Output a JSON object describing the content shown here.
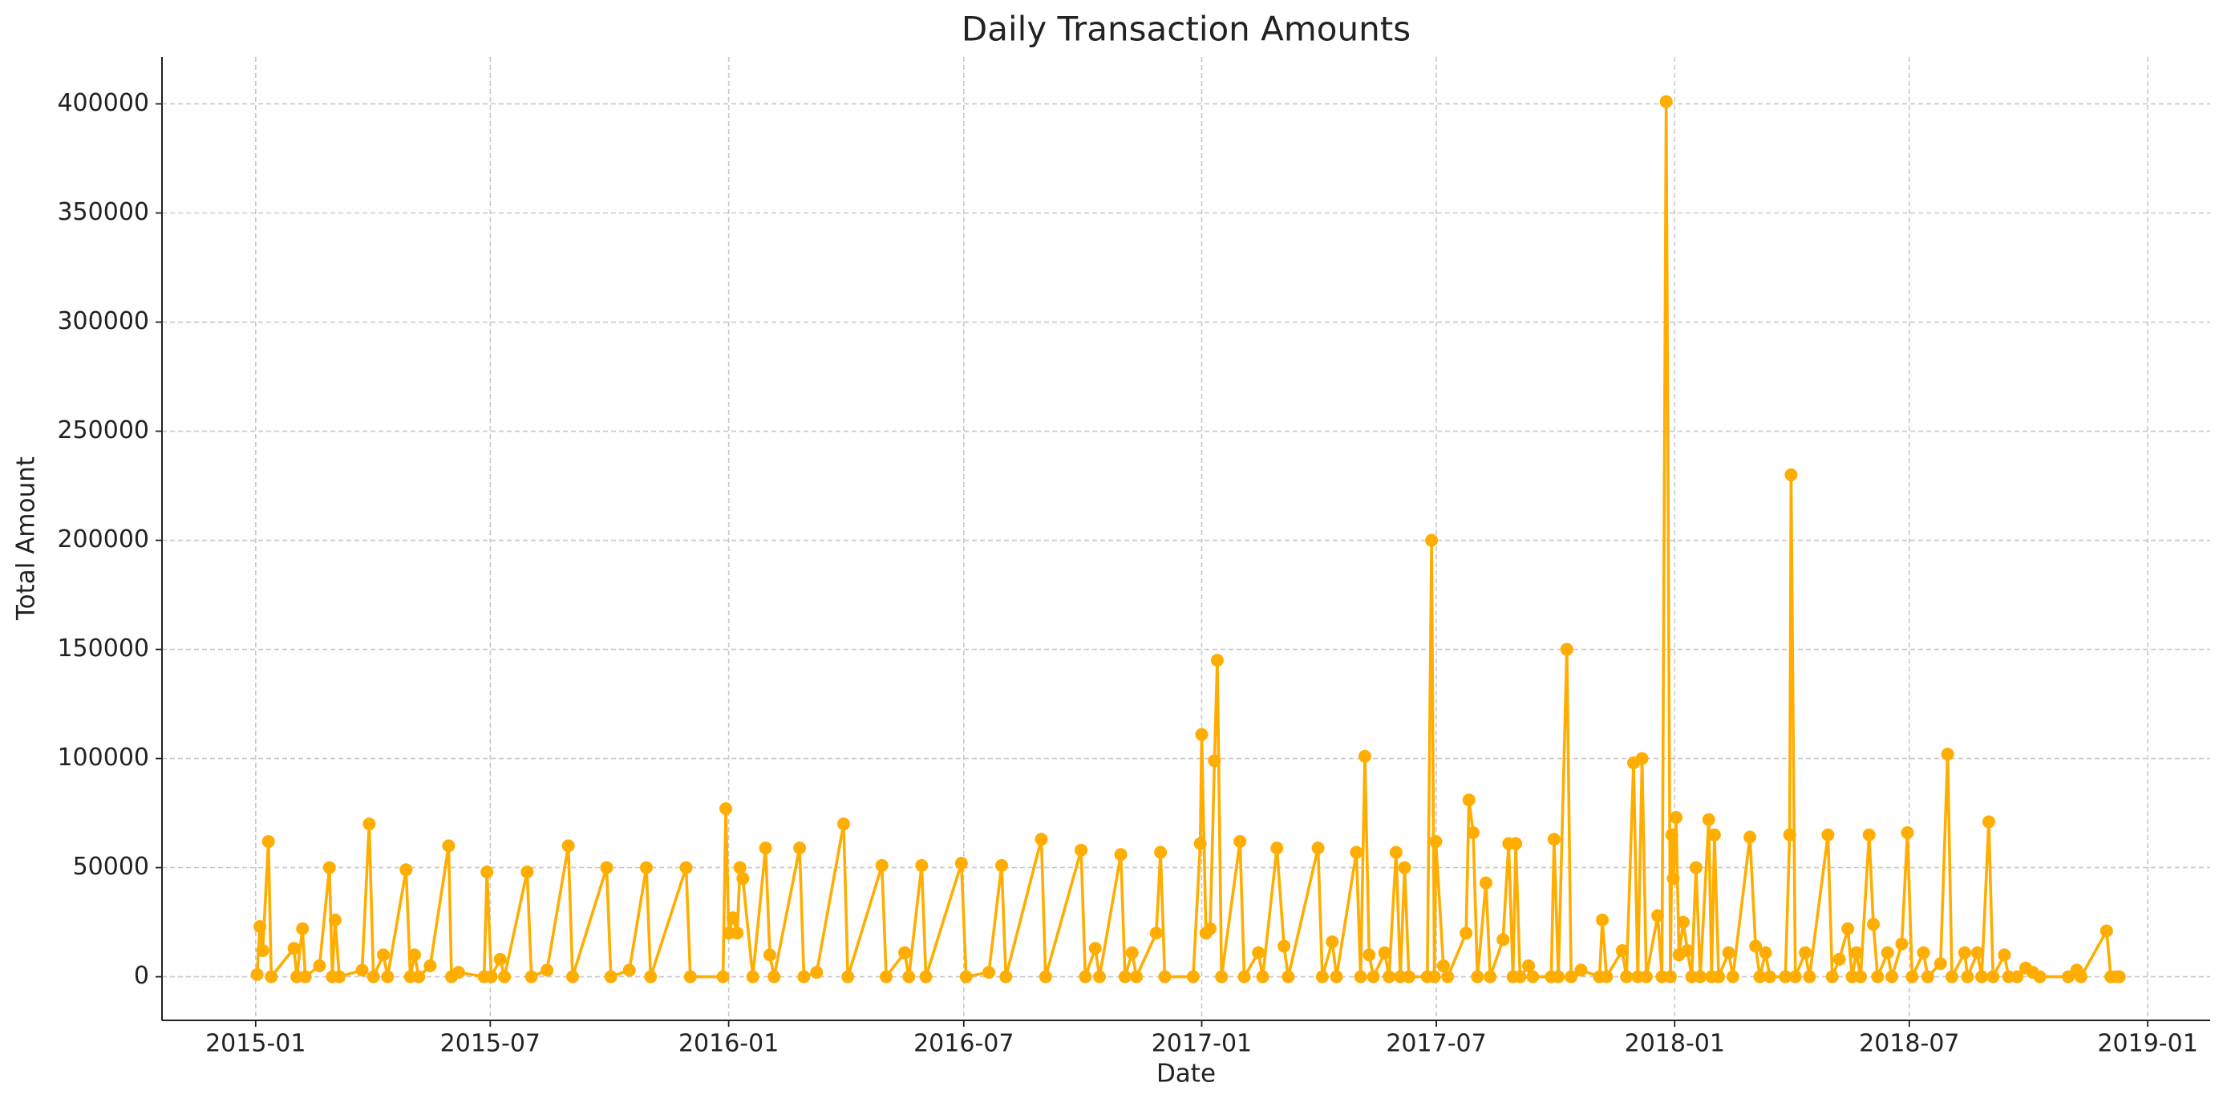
{
  "chart_data": {
    "type": "line",
    "title": "Daily Transaction Amounts",
    "xlabel": "Date",
    "ylabel": "Total Amount",
    "color": "#ffad00",
    "grid": true,
    "xlim": [
      2014.802,
      2019.132
    ],
    "ylim": [
      -20000,
      421500
    ],
    "xticks": [
      {
        "value": 2015,
        "label": "2015-01"
      },
      {
        "value": 2015.496,
        "label": "2015-07"
      },
      {
        "value": 2016,
        "label": "2016-01"
      },
      {
        "value": 2016.497,
        "label": "2016-07"
      },
      {
        "value": 2017,
        "label": "2017-01"
      },
      {
        "value": 2017.496,
        "label": "2017-07"
      },
      {
        "value": 2018,
        "label": "2018-01"
      },
      {
        "value": 2018.496,
        "label": "2018-07"
      },
      {
        "value": 2019,
        "label": "2019-01"
      }
    ],
    "yticks": [
      0,
      50000,
      100000,
      150000,
      200000,
      250000,
      300000,
      350000,
      400000
    ],
    "x": [
      2015.003,
      2015.009,
      2015.015,
      2015.027,
      2015.033,
      2015.081,
      2015.087,
      2015.099,
      2015.105,
      2015.135,
      2015.156,
      2015.162,
      2015.168,
      2015.177,
      2015.225,
      2015.24,
      2015.249,
      2015.27,
      2015.279,
      2015.318,
      2015.327,
      2015.336,
      2015.345,
      2015.369,
      2015.408,
      2015.414,
      2015.429,
      2015.483,
      2015.489,
      2015.498,
      2015.517,
      2015.526,
      2015.574,
      2015.583,
      2015.616,
      2015.661,
      2015.67,
      2015.742,
      2015.751,
      2015.79,
      2015.826,
      2015.835,
      2015.91,
      2015.919,
      2015.988,
      2015.994,
      2016.0,
      2016.009,
      2016.018,
      2016.024,
      2016.03,
      2016.051,
      2016.078,
      2016.087,
      2016.096,
      2016.15,
      2016.159,
      2016.186,
      2016.243,
      2016.252,
      2016.324,
      2016.333,
      2016.372,
      2016.381,
      2016.408,
      2016.417,
      2016.492,
      2016.502,
      2016.55,
      2016.577,
      2016.586,
      2016.661,
      2016.67,
      2016.745,
      2016.754,
      2016.775,
      2016.784,
      2016.829,
      2016.838,
      2016.853,
      2016.862,
      2016.904,
      2016.913,
      2016.922,
      2016.982,
      2016.997,
      2017.0,
      2017.009,
      2017.018,
      2017.027,
      2017.033,
      2017.042,
      2017.081,
      2017.09,
      2017.12,
      2017.129,
      2017.159,
      2017.174,
      2017.183,
      2017.246,
      2017.255,
      2017.276,
      2017.285,
      2017.327,
      2017.336,
      2017.345,
      2017.354,
      2017.363,
      2017.387,
      2017.396,
      2017.411,
      2017.42,
      2017.429,
      2017.438,
      2017.477,
      2017.486,
      2017.492,
      2017.495,
      2017.511,
      2017.52,
      2017.559,
      2017.565,
      2017.574,
      2017.583,
      2017.601,
      2017.61,
      2017.637,
      2017.649,
      2017.658,
      2017.664,
      2017.673,
      2017.691,
      2017.7,
      2017.739,
      2017.745,
      2017.754,
      2017.772,
      2017.781,
      2017.802,
      2017.841,
      2017.847,
      2017.856,
      2017.889,
      2017.898,
      2017.913,
      2017.922,
      2017.931,
      2017.94,
      2017.964,
      2017.973,
      2017.982,
      2017.991,
      2017.994,
      2017.997,
      2018.003,
      2018.009,
      2018.018,
      2018.027,
      2018.036,
      2018.045,
      2018.054,
      2018.072,
      2018.078,
      2018.084,
      2018.093,
      2018.114,
      2018.123,
      2018.159,
      2018.171,
      2018.18,
      2018.192,
      2018.201,
      2018.234,
      2018.243,
      2018.246,
      2018.255,
      2018.276,
      2018.285,
      2018.324,
      2018.333,
      2018.348,
      2018.366,
      2018.375,
      2018.384,
      2018.393,
      2018.411,
      2018.42,
      2018.429,
      2018.45,
      2018.459,
      2018.48,
      2018.492,
      2018.502,
      2018.526,
      2018.535,
      2018.562,
      2018.577,
      2018.586,
      2018.613,
      2018.619,
      2018.64,
      2018.649,
      2018.664,
      2018.673,
      2018.697,
      2018.706,
      2018.724,
      2018.742,
      2018.757,
      2018.772,
      2018.832,
      2018.85,
      2018.859,
      2018.913,
      2018.922,
      2018.934,
      2018.94
    ],
    "values": [
      1000,
      23000,
      12000,
      62000,
      0,
      13000,
      0,
      22000,
      0,
      5000,
      50000,
      0,
      26000,
      0,
      3000,
      70000,
      0,
      10000,
      0,
      49000,
      0,
      10000,
      0,
      5000,
      60000,
      0,
      2000,
      0,
      48000,
      0,
      8000,
      0,
      48000,
      0,
      3000,
      60000,
      0,
      50000,
      0,
      3000,
      50000,
      0,
      50000,
      0,
      0,
      77000,
      20000,
      27000,
      20000,
      50000,
      45000,
      0,
      59000,
      10000,
      0,
      59000,
      0,
      2000,
      70000,
      0,
      51000,
      0,
      11000,
      0,
      51000,
      0,
      52000,
      0,
      2000,
      51000,
      0,
      63000,
      0,
      58000,
      0,
      13000,
      0,
      56000,
      0,
      11000,
      0,
      20000,
      57000,
      0,
      0,
      61000,
      111000,
      20000,
      22000,
      99000,
      145000,
      0,
      62000,
      0,
      11000,
      0,
      59000,
      14000,
      0,
      59000,
      0,
      16000,
      0,
      57000,
      0,
      101000,
      10000,
      0,
      11000,
      0,
      57000,
      0,
      50000,
      0,
      0,
      200000,
      0,
      62000,
      5000,
      0,
      20000,
      81000,
      66000,
      0,
      43000,
      0,
      17000,
      61000,
      0,
      61000,
      0,
      5000,
      0,
      0,
      63000,
      0,
      150000,
      0,
      3000,
      0,
      26000,
      0,
      12000,
      0,
      98000,
      0,
      100000,
      0,
      28000,
      0,
      401000,
      0,
      65000,
      45000,
      73000,
      10000,
      25000,
      12000,
      0,
      50000,
      0,
      72000,
      0,
      65000,
      0,
      11000,
      0,
      64000,
      14000,
      0,
      11000,
      0,
      0,
      65000,
      230000,
      0,
      11000,
      0,
      65000,
      0,
      8000,
      22000,
      0,
      11000,
      0,
      65000,
      24000,
      0,
      11000,
      0,
      15000,
      66000,
      0,
      11000,
      0,
      6000,
      102000,
      0,
      11000,
      0,
      11000,
      0,
      71000,
      0,
      10000,
      0,
      0,
      4000,
      2000,
      0,
      0,
      3000,
      0,
      21000,
      0,
      0,
      0
    ]
  }
}
